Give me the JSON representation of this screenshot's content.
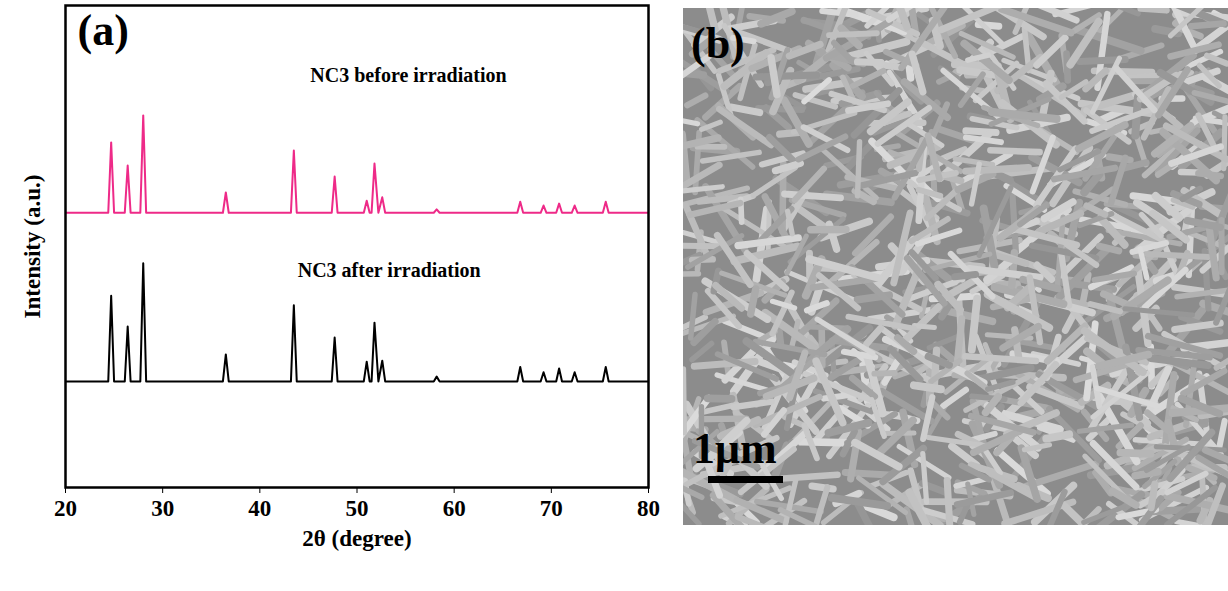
{
  "chart_data": {
    "type": "line",
    "panel": "(a)",
    "x_label": "2θ (degree)",
    "y_label": "Intensity (a.u.)",
    "x": [
      20,
      24.4,
      24.7,
      25.0,
      26.1,
      26.4,
      26.7,
      27.7,
      28.0,
      28.3,
      36.2,
      36.5,
      36.8,
      43.2,
      43.5,
      43.8,
      47.4,
      47.7,
      48.0,
      50.7,
      51.0,
      51.3,
      51.5,
      51.8,
      52.2,
      52.6,
      52.9,
      57.9,
      58.2,
      58.5,
      66.5,
      66.8,
      67.1,
      68.9,
      69.2,
      69.5,
      70.5,
      70.8,
      71.1,
      72.1,
      72.4,
      72.7,
      75.3,
      75.6,
      75.9,
      80
    ],
    "series": [
      {
        "name": "NC3 before irradiation",
        "color": "#ee2a88",
        "values": [
          57,
          57,
          71.6,
          57,
          57,
          66.8,
          57,
          57,
          77.2,
          57,
          57,
          61.2,
          57,
          57,
          69.9,
          57,
          57,
          64.5,
          57,
          57,
          59.5,
          57,
          57,
          67.2,
          57,
          60.2,
          57,
          57,
          57.7,
          57,
          57,
          59.3,
          57,
          57,
          58.5,
          57,
          57,
          58.9,
          57,
          57,
          58.5,
          57,
          57,
          59.3,
          57,
          57
        ]
      },
      {
        "name": "NC3 after irradiation",
        "color": "#000000",
        "values": [
          22,
          22,
          39.8,
          22,
          22,
          33.4,
          22,
          22,
          46.5,
          22,
          22,
          27.6,
          22,
          22,
          37.8,
          22,
          22,
          31.1,
          22,
          22,
          26.1,
          22,
          22,
          34.2,
          22,
          26.3,
          22,
          22,
          23,
          22,
          22,
          25,
          22,
          22,
          23.9,
          22,
          22,
          24.7,
          22,
          22,
          23.9,
          22,
          22,
          25,
          22,
          22
        ]
      }
    ],
    "annotations": [
      {
        "text": "NC3 before irradiation",
        "x": 45.2,
        "y": 85.5
      },
      {
        "text": "NC3 after irradiation",
        "x": 43.9,
        "y": 45
      }
    ],
    "xlim": [
      20,
      80
    ],
    "xticks": [
      20,
      30,
      40,
      50,
      60,
      70,
      80
    ],
    "ylim": [
      0,
      100
    ],
    "yticks": [],
    "tick_labels": "x",
    "grid": false
  },
  "image_panel": {
    "panel": "(b)",
    "scale_bar": "1μm"
  }
}
